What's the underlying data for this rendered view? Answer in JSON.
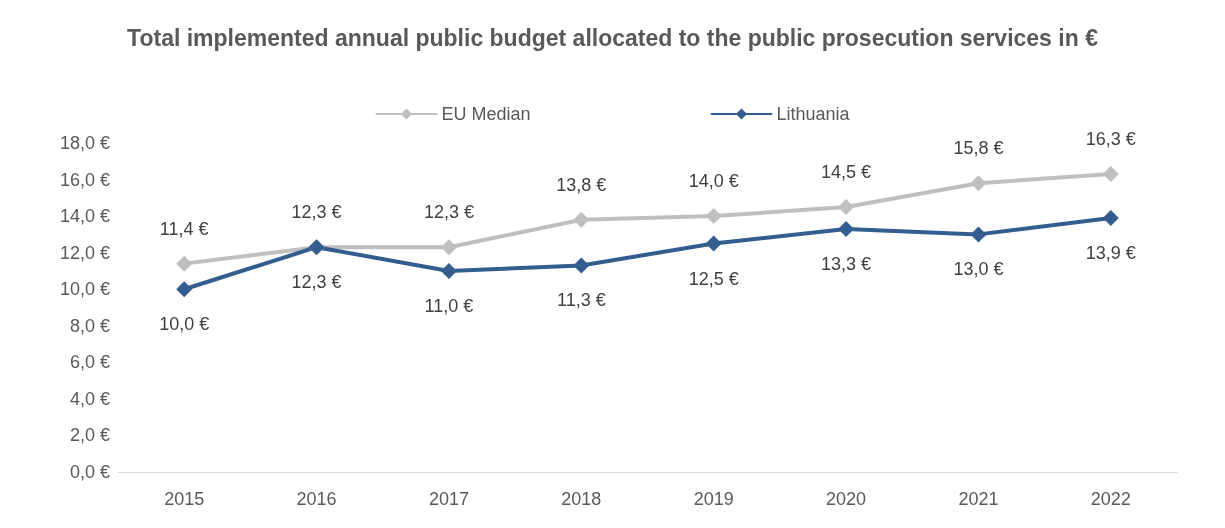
{
  "chart_data": {
    "type": "line",
    "title": "Total implemented annual public budget allocated to the public prosecution services in €",
    "categories": [
      "2015",
      "2016",
      "2017",
      "2018",
      "2019",
      "2020",
      "2021",
      "2022"
    ],
    "series": [
      {
        "name": "EU Median",
        "color": "#bfbfbf",
        "values": [
          11.4,
          12.3,
          12.3,
          13.8,
          14.0,
          14.5,
          15.8,
          16.3
        ],
        "value_labels": [
          "11,4 €",
          "12,3 €",
          "12,3 €",
          "13,8 €",
          "14,0 €",
          "14,5 €",
          "15,8 €",
          "16,3 €"
        ]
      },
      {
        "name": "Lithuania",
        "color": "#325d8e",
        "values": [
          10.0,
          12.3,
          11.0,
          11.3,
          12.5,
          13.3,
          13.0,
          13.9
        ],
        "value_labels": [
          "10,0 €",
          "12,3 €",
          "11,0 €",
          "11,3 €",
          "12,5 €",
          "13,3 €",
          "13,0 €",
          "13,9 €"
        ]
      }
    ],
    "ylim": [
      0,
      18
    ],
    "yticks": [
      {
        "value": 0,
        "label": "0,0 €"
      },
      {
        "value": 2,
        "label": "2,0 €"
      },
      {
        "value": 4,
        "label": "4,0 €"
      },
      {
        "value": 6,
        "label": "6,0 €"
      },
      {
        "value": 8,
        "label": "8,0 €"
      },
      {
        "value": 10,
        "label": "10,0 €"
      },
      {
        "value": 12,
        "label": "12,0 €"
      },
      {
        "value": 14,
        "label": "14,0 €"
      },
      {
        "value": 16,
        "label": "16,0 €"
      },
      {
        "value": 18,
        "label": "18,0 €"
      }
    ],
    "legend": "top",
    "marker": "diamond",
    "line_style": "solid",
    "grid": false
  }
}
